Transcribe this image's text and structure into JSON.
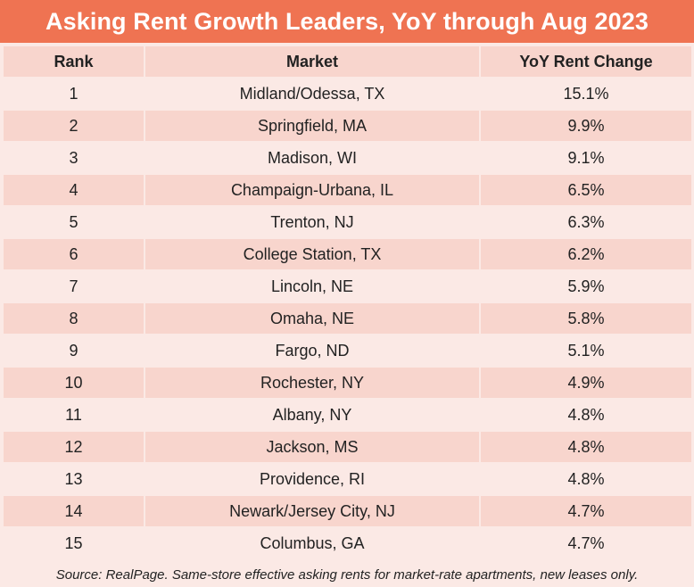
{
  "colors": {
    "title_bg": "#ef7352",
    "header_bg": "#f8d5cd",
    "row_light": "#fbe9e5",
    "row_dark": "#f8d5cd"
  },
  "chart_data": {
    "type": "table",
    "title": "Asking Rent Growth Leaders, YoY through Aug 2023",
    "columns": [
      "Rank",
      "Market",
      "YoY Rent Change"
    ],
    "rows": [
      {
        "rank": "1",
        "market": "Midland/Odessa, TX",
        "change": "15.1%"
      },
      {
        "rank": "2",
        "market": "Springfield, MA",
        "change": "9.9%"
      },
      {
        "rank": "3",
        "market": "Madison, WI",
        "change": "9.1%"
      },
      {
        "rank": "4",
        "market": "Champaign-Urbana, IL",
        "change": "6.5%"
      },
      {
        "rank": "5",
        "market": "Trenton, NJ",
        "change": "6.3%"
      },
      {
        "rank": "6",
        "market": "College Station, TX",
        "change": "6.2%"
      },
      {
        "rank": "7",
        "market": "Lincoln, NE",
        "change": "5.9%"
      },
      {
        "rank": "8",
        "market": "Omaha, NE",
        "change": "5.8%"
      },
      {
        "rank": "9",
        "market": "Fargo, ND",
        "change": "5.1%"
      },
      {
        "rank": "10",
        "market": "Rochester, NY",
        "change": "4.9%"
      },
      {
        "rank": "11",
        "market": "Albany, NY",
        "change": "4.8%"
      },
      {
        "rank": "12",
        "market": "Jackson, MS",
        "change": "4.8%"
      },
      {
        "rank": "13",
        "market": "Providence, RI",
        "change": "4.8%"
      },
      {
        "rank": "14",
        "market": "Newark/Jersey City, NJ",
        "change": "4.7%"
      },
      {
        "rank": "15",
        "market": "Columbus, GA",
        "change": "4.7%"
      }
    ],
    "source": "Source: RealPage. Same-store effective asking rents for market-rate apartments, new leases only."
  }
}
